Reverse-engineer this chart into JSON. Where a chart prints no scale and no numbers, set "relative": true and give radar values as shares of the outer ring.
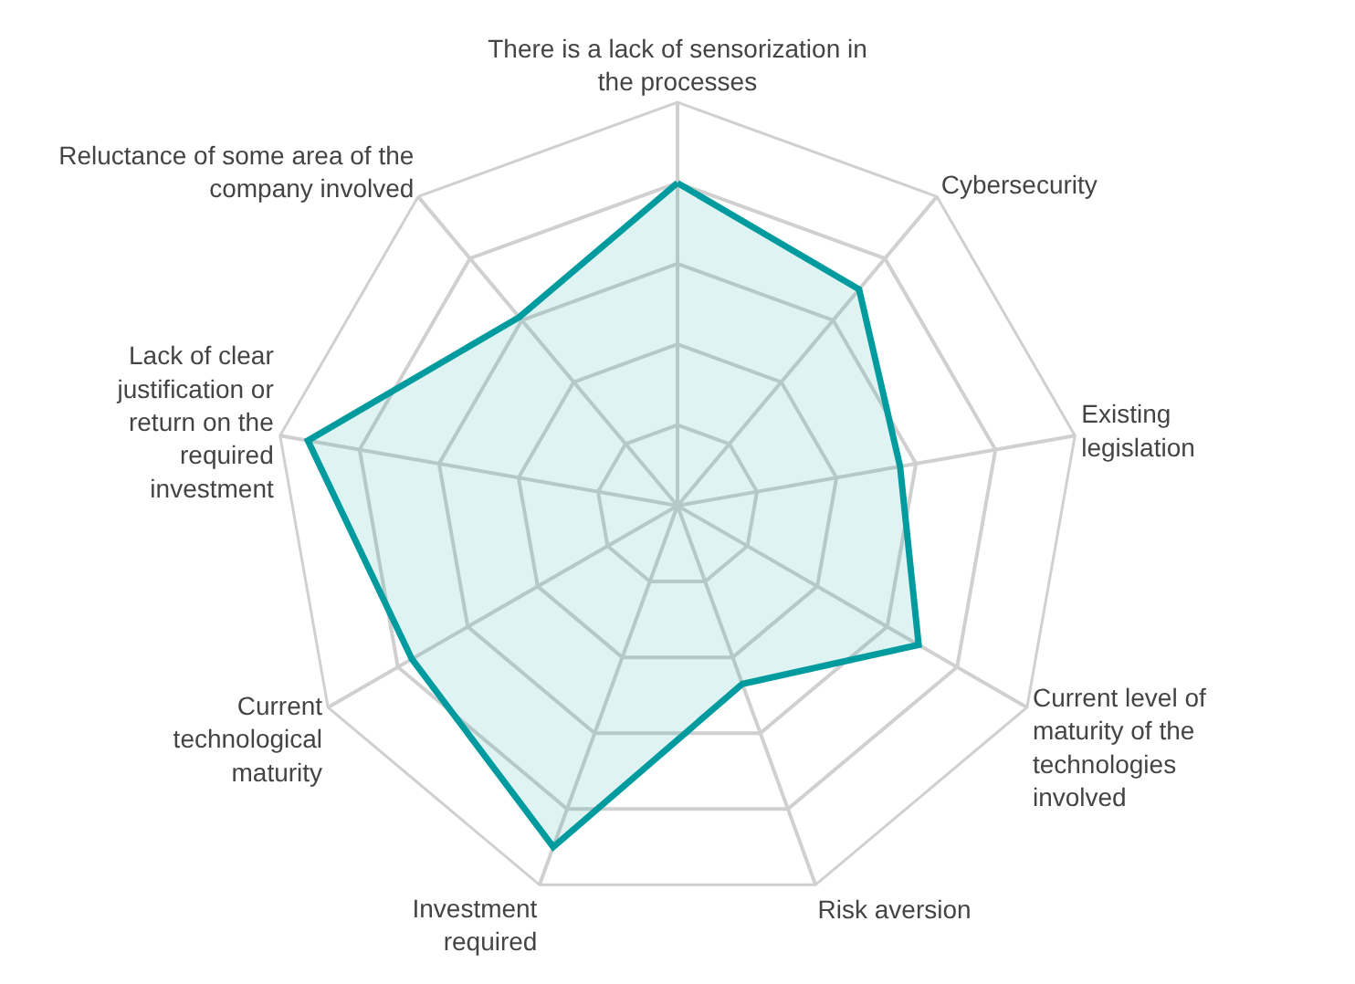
{
  "chart_data": {
    "type": "radar",
    "relative": true,
    "grid": true,
    "legend": false,
    "marker": "none",
    "line_style": "solid",
    "categories": [
      "There is a lack of sensorization in the processes",
      "Cybersecurity",
      "Existing legislation",
      "Current level of maturity of the technologies involved",
      "Risk aversion",
      "Investment required",
      "Current technological maturity",
      "Lack of clear justification or return on the required investment",
      "Reluctance of some area of the company involved"
    ],
    "series": [
      {
        "color": "#009b9e",
        "values": [
          0.8,
          0.7,
          0.56,
          0.69,
          0.47,
          0.9,
          0.76,
          0.93,
          0.61
        ]
      }
    ]
  }
}
